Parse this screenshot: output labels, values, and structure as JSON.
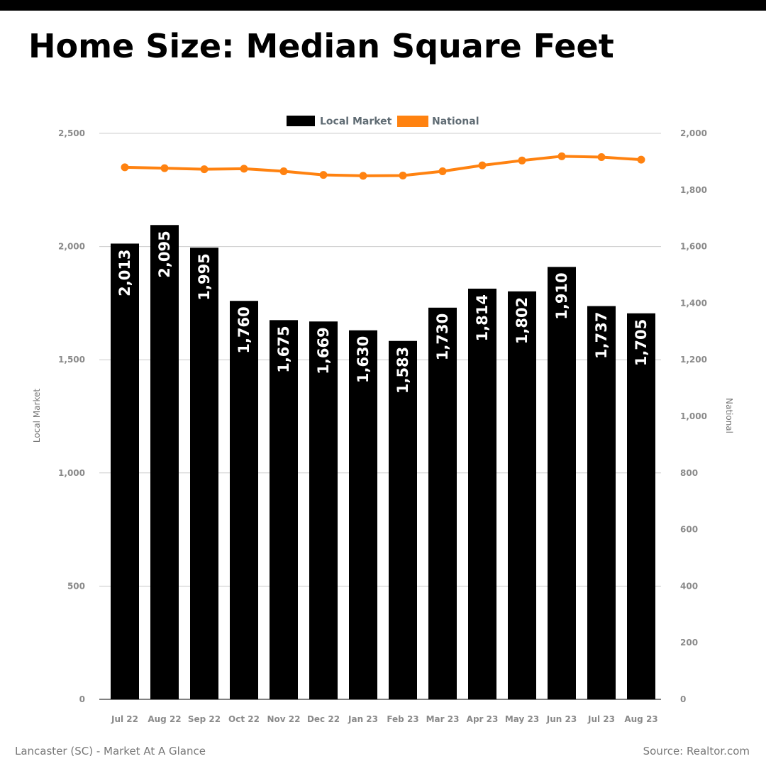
{
  "title": "Home Size: Median Square Feet",
  "footer": {
    "left": "Lancaster (SC) - Market At A Glance",
    "right": "Source: Realtor.com"
  },
  "colors": {
    "local": "#000000",
    "national": "#ff8210",
    "grid": "#cccccc"
  },
  "chart_data": {
    "type": "bar",
    "categories": [
      "Jul 22",
      "Aug 22",
      "Sep 22",
      "Oct 22",
      "Nov 22",
      "Dec 22",
      "Jan 23",
      "Feb 23",
      "Mar 23",
      "Apr 23",
      "May 23",
      "Jun 23",
      "Jul 23",
      "Aug 23"
    ],
    "series": [
      {
        "name": "Local Market",
        "type": "bar",
        "axis": "left",
        "values": [
          2013,
          2095,
          1995,
          1760,
          1675,
          1669,
          1630,
          1583,
          1730,
          1814,
          1802,
          1910,
          1737,
          1705
        ],
        "labels": [
          "2,013",
          "2,095",
          "1,995",
          "1,760",
          "1,675",
          "1,669",
          "1,630",
          "1,583",
          "1,730",
          "1,814",
          "1,802",
          "1,910",
          "1,737",
          "1,705"
        ]
      },
      {
        "name": "National",
        "type": "line",
        "axis": "right",
        "values": [
          1880,
          1877,
          1873,
          1875,
          1866,
          1853,
          1850,
          1851,
          1866,
          1887,
          1904,
          1919,
          1916,
          1907
        ]
      }
    ],
    "y_left": {
      "label": "Local Market",
      "ylim": [
        0,
        2500
      ],
      "ticks": [
        0,
        500,
        1000,
        1500,
        2000,
        2500
      ],
      "tick_labels": [
        "0",
        "500",
        "1,000",
        "1,500",
        "2,000",
        "2,500"
      ]
    },
    "y_right": {
      "label": "National",
      "ylim": [
        0,
        2000
      ],
      "ticks": [
        0,
        200,
        400,
        600,
        800,
        1000,
        1200,
        1400,
        1600,
        1800,
        2000
      ],
      "tick_labels": [
        "0",
        "200",
        "400",
        "600",
        "800",
        "1,000",
        "1,200",
        "1,400",
        "1,600",
        "1,800",
        "2,000"
      ]
    },
    "legend": "top-center",
    "grid": true
  }
}
